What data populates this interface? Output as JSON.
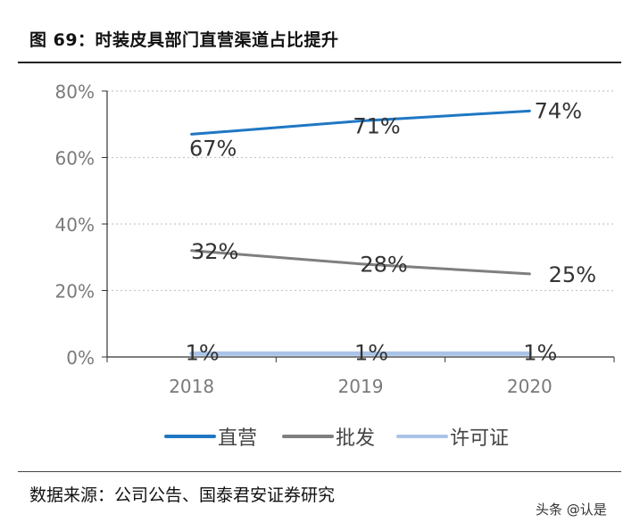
{
  "figure": {
    "title": "图 69：时装皮具部门直营渠道占比提升",
    "source": "数据来源：公司公告、国泰君安证券研究",
    "watermark": "头条 @认是"
  },
  "chart_data": {
    "type": "line",
    "title": "",
    "xlabel": "",
    "ylabel": "",
    "x": [
      "2018",
      "2019",
      "2020"
    ],
    "ylim": [
      0,
      80
    ],
    "yticks": [
      "0%",
      "20%",
      "40%",
      "60%",
      "80%"
    ],
    "grid": true,
    "legend_position": "bottom",
    "series": [
      {
        "name": "直营",
        "values": [
          67,
          71,
          74
        ],
        "labels": [
          "67%",
          "71%",
          "74%"
        ],
        "color": "#1f77c4"
      },
      {
        "name": "批发",
        "values": [
          32,
          28,
          25
        ],
        "labels": [
          "32%",
          "28%",
          "25%"
        ],
        "color": "#7f7f7f"
      },
      {
        "name": "许可证",
        "values": [
          1,
          1,
          1
        ],
        "labels": [
          "1%",
          "1%",
          "1%"
        ],
        "color": "#a9c4e8"
      }
    ]
  }
}
